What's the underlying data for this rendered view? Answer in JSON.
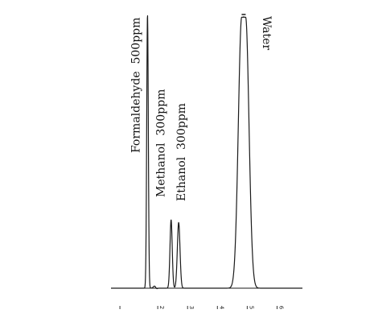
{
  "chart_data": {
    "type": "line",
    "title": "",
    "xlabel": "",
    "ylabel": "",
    "grid": false,
    "legend": "none",
    "line_color": "#1a1a1a",
    "peaks": [
      {
        "label": "Formaldehyde  500ppm",
        "rt": 0.62,
        "height": 1.0
      },
      {
        "label": "Methanol  300ppm",
        "rt": 1.15,
        "height": 0.25
      },
      {
        "label": "Ethanol  300ppm",
        "rt": 1.32,
        "height": 0.24
      },
      {
        "label": "Water",
        "rt": 2.78,
        "height": 0.99
      }
    ],
    "xticks": [
      {
        "value": 0.0,
        "label": ""
      },
      {
        "value": 0.85,
        "label": "2"
      },
      {
        "value": 1.52,
        "label": "3"
      },
      {
        "value": 2.19,
        "label": "4"
      },
      {
        "value": 2.86,
        "label": "5"
      },
      {
        "value": 3.53,
        "label": "6"
      }
    ],
    "xlim": [
      -0.2,
      4.1
    ],
    "ylim": [
      0,
      1.0
    ]
  }
}
